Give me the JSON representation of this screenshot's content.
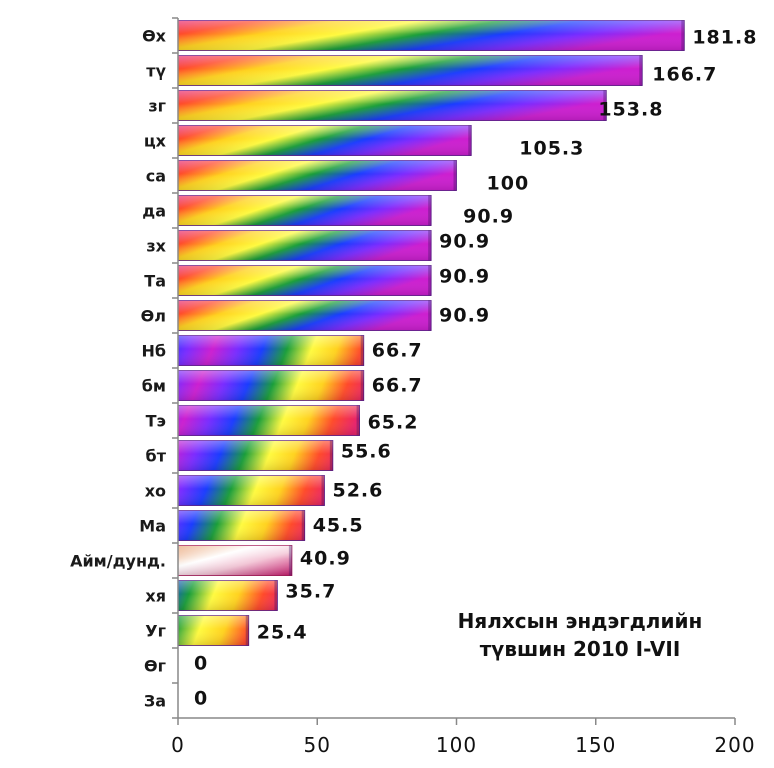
{
  "chart_data": {
    "type": "bar",
    "orientation": "horizontal",
    "title_lines": [
      "Нялхсын эндэгдлийн",
      "түвшин 2010 I-VII"
    ],
    "categories": [
      "Өх",
      "тү",
      "зг",
      "цх",
      "са",
      "да",
      "зх",
      "Та",
      "Өл",
      "Нб",
      "бм",
      "Тэ",
      "бт",
      "хо",
      "Ма",
      "Айм/дунд.",
      "хя",
      "Уг",
      "Өг",
      "За"
    ],
    "values": [
      181.8,
      166.7,
      153.8,
      105.3,
      100,
      90.9,
      90.9,
      90.9,
      90.9,
      66.7,
      66.7,
      65.2,
      55.6,
      52.6,
      45.5,
      40.9,
      35.7,
      25.4,
      0,
      0
    ],
    "value_labels": [
      "181.8",
      "166.7",
      "153.8",
      "105.3",
      "100",
      "90.9",
      "90.9",
      "90.9",
      "90.9",
      "66.7",
      "66.7",
      "65.2",
      "55.6",
      "52.6",
      "45.5",
      "40.9",
      "35.7",
      "25.4",
      "0",
      "0"
    ],
    "highlight_category": "Айм/дунд.",
    "xlim": [
      0,
      200
    ],
    "x_ticks": [
      "0",
      "50",
      "100",
      "150",
      "200"
    ],
    "grid": false,
    "bar_fill": "rainbow gradient",
    "colors": {
      "rainbow": [
        "#e8206e",
        "#ff4a2a",
        "#ffd21f",
        "#fffa40",
        "#1a9e3a",
        "#1a3cff",
        "#7a2cff",
        "#cc1fd0"
      ],
      "highlight": [
        "#e8a070",
        "#ffffff",
        "#f4c8d8",
        "#c81a6e"
      ]
    }
  }
}
